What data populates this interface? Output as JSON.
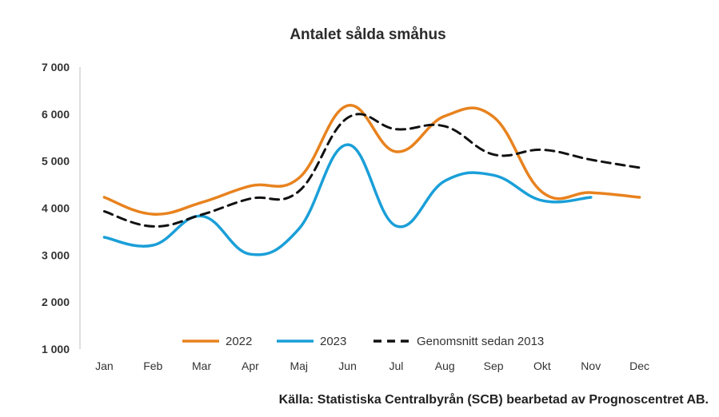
{
  "chart_data": {
    "type": "line",
    "title": "Antalet sålda småhus",
    "xlabel": "",
    "ylabel": "",
    "categories": [
      "Jan",
      "Feb",
      "Mar",
      "Apr",
      "Maj",
      "Jun",
      "Jul",
      "Aug",
      "Sep",
      "Okt",
      "Nov",
      "Dec"
    ],
    "ylim": [
      1000,
      7000
    ],
    "yticks": [
      1000,
      2000,
      3000,
      4000,
      5000,
      6000,
      7000
    ],
    "ytick_labels": [
      "1 000",
      "2 000",
      "3 000",
      "4 000",
      "5 000",
      "6 000",
      "7 000"
    ],
    "grid": false,
    "legend_position": "bottom",
    "series": [
      {
        "name": "2022",
        "color": "#e8821e",
        "dash": "solid",
        "values": [
          4230,
          3870,
          4120,
          4470,
          4640,
          6180,
          5200,
          5960,
          5940,
          4340,
          4330,
          4230
        ]
      },
      {
        "name": "2023",
        "color": "#1a9fd8",
        "dash": "solid",
        "values": [
          3380,
          3210,
          3830,
          3020,
          3560,
          5350,
          3620,
          4580,
          4700,
          4160,
          4230,
          null
        ]
      },
      {
        "name": "Genomsnitt sedan 2013",
        "color": "#111111",
        "dash": "dashed",
        "values": [
          3930,
          3610,
          3860,
          4200,
          4360,
          5920,
          5680,
          5740,
          5140,
          5240,
          5030,
          4860
        ]
      }
    ]
  },
  "source": "Källa: Statistiska Centralbyrån (SCB) bearbetad av Prognoscentret AB."
}
